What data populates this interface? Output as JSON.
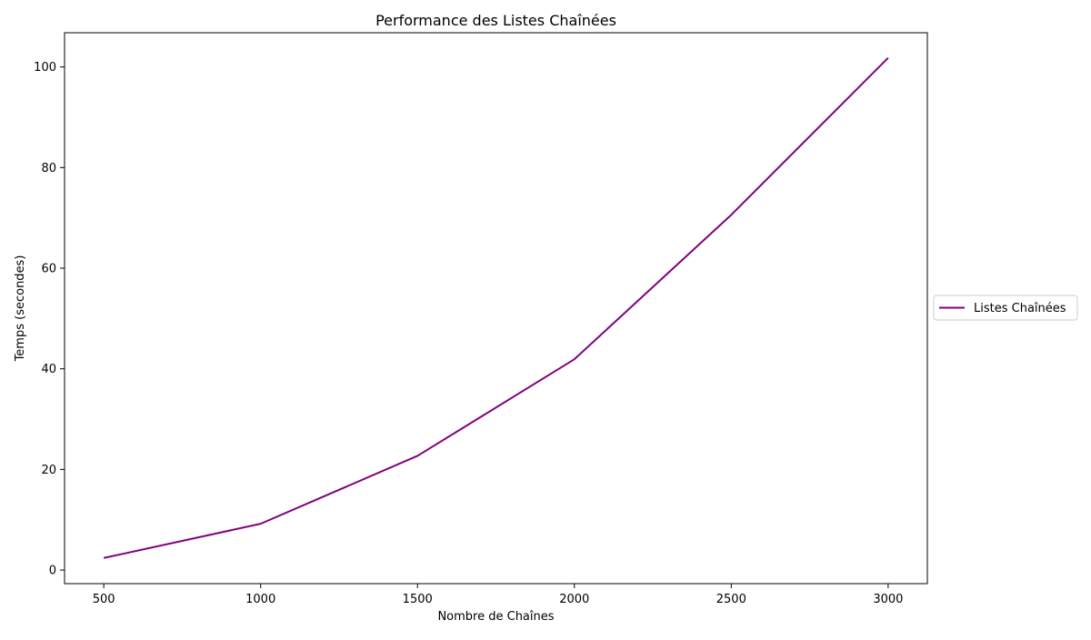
{
  "chart_data": {
    "type": "line",
    "title": "Performance des Listes Chaînées",
    "xlabel": "Nombre de Chaînes",
    "ylabel": "Temps (secondes)",
    "x": [
      500,
      1000,
      1500,
      2000,
      2500,
      3000
    ],
    "xticks": [
      "500",
      "1000",
      "1500",
      "2000",
      "2500",
      "3000"
    ],
    "yticks": [
      "0",
      "20",
      "40",
      "60",
      "80",
      "100"
    ],
    "xlim": [
      375,
      3125
    ],
    "ylim": [
      -2.7,
      106.8
    ],
    "grid": false,
    "legend_position": "center-right, outside plot",
    "series": [
      {
        "name": "Listes Chaînées",
        "color": "#800080",
        "values": [
          2.4,
          9.2,
          22.7,
          41.9,
          70.6,
          101.8
        ]
      }
    ]
  }
}
